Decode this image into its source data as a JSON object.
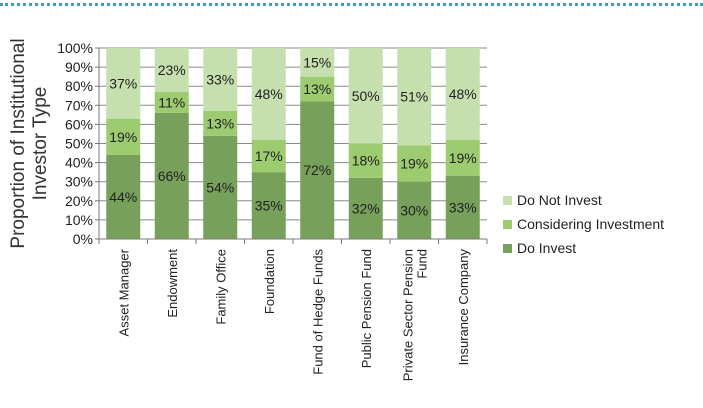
{
  "chart_data": {
    "type": "bar",
    "stacked": true,
    "normalized": true,
    "title": "",
    "xlabel": "",
    "ylabel": [
      "Proportion of Institutional",
      "Investor Type"
    ],
    "ylim": [
      0,
      100
    ],
    "yticks": [
      "0%",
      "10%",
      "20%",
      "30%",
      "40%",
      "50%",
      "60%",
      "70%",
      "80%",
      "90%",
      "100%"
    ],
    "grid": true,
    "legend_position": "right",
    "categories": [
      [
        "Asset Manager"
      ],
      [
        "Endowment"
      ],
      [
        "Family Office"
      ],
      [
        "Foundation"
      ],
      [
        "Fund of Hedge Funds"
      ],
      [
        "Public Pension Fund"
      ],
      [
        "Private Sector Pension",
        "Fund"
      ],
      [
        "Insurance Company"
      ]
    ],
    "series": [
      {
        "name": "Do Invest",
        "color": "#77a05a",
        "values": [
          44,
          66,
          54,
          35,
          72,
          32,
          30,
          33
        ],
        "labels": [
          "44%",
          "66%",
          "54%",
          "35%",
          "72%",
          "32%",
          "30%",
          "33%"
        ]
      },
      {
        "name": "Considering Investment",
        "color": "#9ccc6f",
        "values": [
          19,
          11,
          13,
          17,
          13,
          18,
          19,
          19
        ],
        "labels": [
          "19%",
          "11%",
          "13%",
          "17%",
          "13%",
          "18%",
          "19%",
          "19%"
        ]
      },
      {
        "name": "Do Not Invest",
        "color": "#c5dfae",
        "values": [
          37,
          23,
          33,
          48,
          15,
          50,
          51,
          48
        ],
        "labels": [
          "37%",
          "23%",
          "33%",
          "48%",
          "15%",
          "50%",
          "51%",
          "48%"
        ]
      }
    ],
    "legend_order": [
      "Do Not Invest",
      "Considering Investment",
      "Do Invest"
    ]
  }
}
